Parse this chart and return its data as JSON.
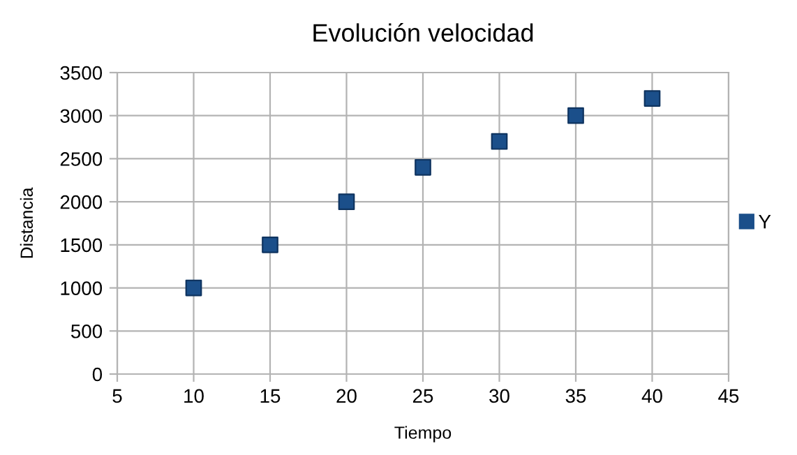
{
  "chart_data": {
    "type": "scatter",
    "title": "Evolución velocidad",
    "xlabel": "Tiempo",
    "ylabel": "Distancia",
    "x": [
      10,
      15,
      20,
      25,
      30,
      35,
      40
    ],
    "series": [
      {
        "name": "Y",
        "color": "#1b4f8a",
        "values": [
          1000,
          1500,
          2000,
          2400,
          2700,
          3000,
          3200
        ]
      }
    ],
    "xlim": [
      5,
      45
    ],
    "xticks": [
      5,
      10,
      15,
      20,
      25,
      30,
      35,
      40,
      45
    ],
    "ylim": [
      0,
      3500
    ],
    "yticks": [
      0,
      500,
      1000,
      1500,
      2000,
      2500,
      3000,
      3500
    ],
    "grid": true,
    "legend": "right",
    "marker": "square"
  }
}
